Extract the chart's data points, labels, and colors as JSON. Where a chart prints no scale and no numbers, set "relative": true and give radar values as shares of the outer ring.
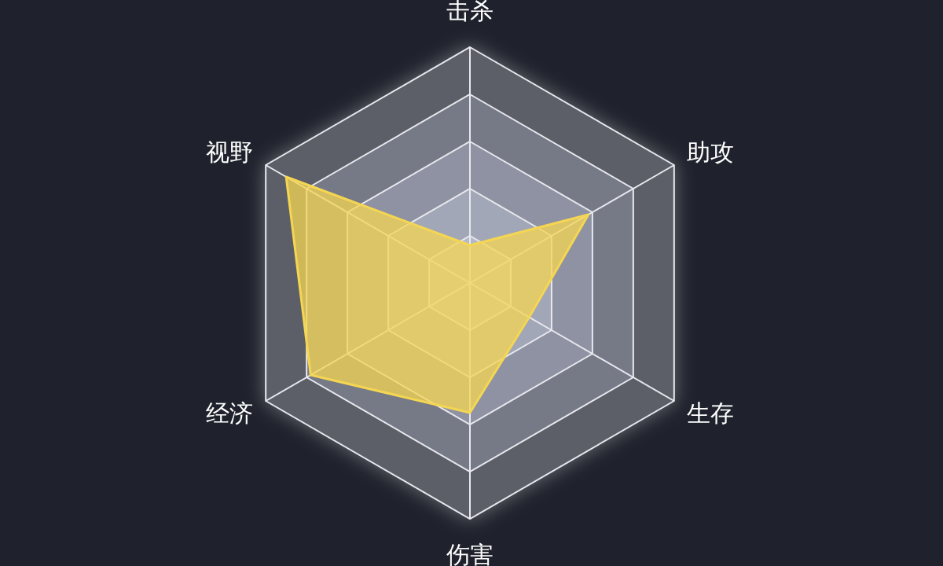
{
  "chart_data": {
    "type": "radar",
    "relative": true,
    "categories": [
      "击杀",
      "助攻",
      "生存",
      "伤害",
      "经济",
      "视野"
    ],
    "series": [
      {
        "color": "#f5d653",
        "values": [
          0.16,
          0.58,
          0.29,
          0.55,
          0.78,
          0.9
        ]
      }
    ]
  }
}
